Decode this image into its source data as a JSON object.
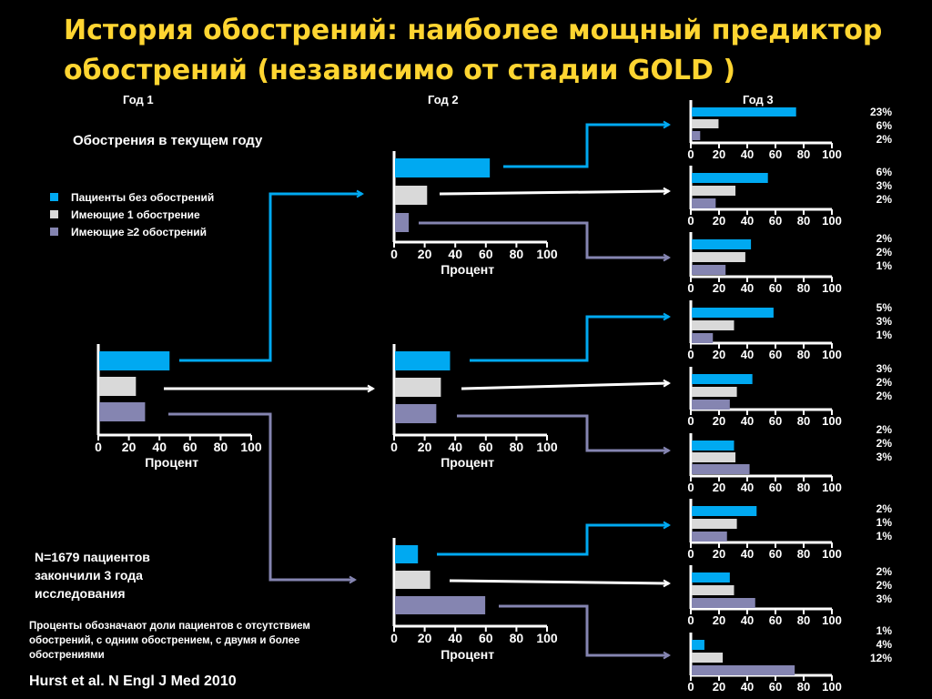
{
  "title": {
    "line1": "История обострений: наиболее мощный предиктор",
    "line2": "обострений (независимо от стадии GOLD )"
  },
  "years": [
    "Год 1",
    "Год 2",
    "Год 3"
  ],
  "subheading": "Обострения в текущем году",
  "legend": [
    {
      "label": "Пациенты без обострений",
      "color": "#00A9F1"
    },
    {
      "label": "Имеющие  1 обострение",
      "color": "#D9D9D9"
    },
    {
      "label": "Имеющие ≥2 обострений",
      "color": "#8585B1"
    }
  ],
  "n_note": "N=1679 пациентов закончили 3 года исследования",
  "footnote": "Проценты обозначают доли пациентов с отсутствием обострений, с одним обострением, с двумя и более обострениями",
  "citation": "Hurst et al. N Engl J Med 2010",
  "colors": {
    "title": "#FFD531",
    "none": "#00A9F1",
    "one": "#D9D9D9",
    "two_plus": "#8585B1",
    "background": "#000000"
  },
  "chart_data": [
    {
      "type": "bar",
      "name": "year1",
      "year": "Год 1",
      "categories": [
        "Пациенты без обострений",
        "Имеющие  1 обострение",
        "Имеющие ≥2 обострений"
      ],
      "values": [
        46,
        24,
        30
      ],
      "xlabel": "Процент",
      "xlim": [
        0,
        100
      ],
      "xticks": [
        "0",
        "20",
        "40",
        "60",
        "80",
        "100"
      ]
    },
    {
      "type": "bar",
      "name": "year2-none",
      "year": "Год 2",
      "categories": [
        "Пациенты без обострений",
        "Имеющие  1 обострение",
        "Имеющие ≥2 обострений"
      ],
      "values": [
        62,
        21,
        9
      ],
      "xlabel": "Процент",
      "xlim": [
        0,
        100
      ],
      "xticks": [
        "0",
        "20",
        "40",
        "60",
        "80",
        "100"
      ]
    },
    {
      "type": "bar",
      "name": "year2-one",
      "year": "Год 2",
      "categories": [
        "Пациенты без обострений",
        "Имеющие  1 обострение",
        "Имеющие ≥2 обострений"
      ],
      "values": [
        36,
        30,
        27
      ],
      "xlabel": "Процент",
      "xlim": [
        0,
        100
      ],
      "xticks": [
        "0",
        "20",
        "40",
        "60",
        "80",
        "100"
      ]
    },
    {
      "type": "bar",
      "name": "year2-two-plus",
      "year": "Год 2",
      "categories": [
        "Пациенты без обострений",
        "Имеющие  1 обострение",
        "Имеющие ≥2 обострений"
      ],
      "values": [
        15,
        23,
        59
      ],
      "xlabel": "Процент",
      "xlim": [
        0,
        100
      ],
      "xticks": [
        "0",
        "20",
        "40",
        "60",
        "80",
        "100"
      ]
    },
    {
      "type": "bar",
      "name": "year3-1",
      "year": "Год 3",
      "values": [
        74,
        19,
        6
      ],
      "xlim": [
        0,
        100
      ],
      "xticks": [
        "0",
        "20",
        "40",
        "60",
        "80",
        "100"
      ],
      "labels": [
        "23%",
        "6%",
        "2%"
      ]
    },
    {
      "type": "bar",
      "name": "year3-2",
      "year": "Год 3",
      "values": [
        54,
        31,
        17
      ],
      "xlim": [
        0,
        100
      ],
      "xticks": [
        "0",
        "20",
        "40",
        "60",
        "80",
        "100"
      ],
      "labels": [
        "6%",
        "3%",
        "2%"
      ]
    },
    {
      "type": "bar",
      "name": "year3-3",
      "year": "Год 3",
      "values": [
        42,
        38,
        24
      ],
      "xlim": [
        0,
        100
      ],
      "xticks": [
        "0",
        "20",
        "40",
        "60",
        "80",
        "100"
      ],
      "labels": [
        "2%",
        "2%",
        "1%"
      ]
    },
    {
      "type": "bar",
      "name": "year3-4",
      "year": "Год 3",
      "values": [
        58,
        30,
        15
      ],
      "xlim": [
        0,
        100
      ],
      "xticks": [
        "0",
        "20",
        "40",
        "60",
        "80",
        "100"
      ],
      "labels": [
        "5%",
        "3%",
        "1%"
      ]
    },
    {
      "type": "bar",
      "name": "year3-5",
      "year": "Год 3",
      "values": [
        43,
        32,
        27
      ],
      "xlim": [
        0,
        100
      ],
      "xticks": [
        "0",
        "20",
        "40",
        "60",
        "80",
        "100"
      ],
      "labels": [
        "3%",
        "2%",
        "2%"
      ]
    },
    {
      "type": "bar",
      "name": "year3-6",
      "year": "Год 3",
      "values": [
        30,
        31,
        41
      ],
      "xlim": [
        0,
        100
      ],
      "xticks": [
        "0",
        "20",
        "40",
        "60",
        "80",
        "100"
      ],
      "labels": [
        "2%",
        "2%",
        "3%"
      ]
    },
    {
      "type": "bar",
      "name": "year3-7",
      "year": "Год 3",
      "values": [
        46,
        32,
        25
      ],
      "xlim": [
        0,
        100
      ],
      "xticks": [
        "0",
        "20",
        "40",
        "60",
        "80",
        "100"
      ],
      "labels": [
        "2%",
        "1%",
        "1%"
      ]
    },
    {
      "type": "bar",
      "name": "year3-8",
      "year": "Год 3",
      "values": [
        27,
        30,
        45
      ],
      "xlim": [
        0,
        100
      ],
      "xticks": [
        "0",
        "20",
        "40",
        "60",
        "80",
        "100"
      ],
      "labels": [
        "2%",
        "2%",
        "3%"
      ]
    },
    {
      "type": "bar",
      "name": "year3-9",
      "year": "Год 3",
      "values": [
        9,
        22,
        73
      ],
      "xlim": [
        0,
        100
      ],
      "xticks": [
        "0",
        "20",
        "40",
        "60",
        "80",
        "100"
      ],
      "labels": [
        "1%",
        "4%",
        "12%"
      ]
    }
  ]
}
